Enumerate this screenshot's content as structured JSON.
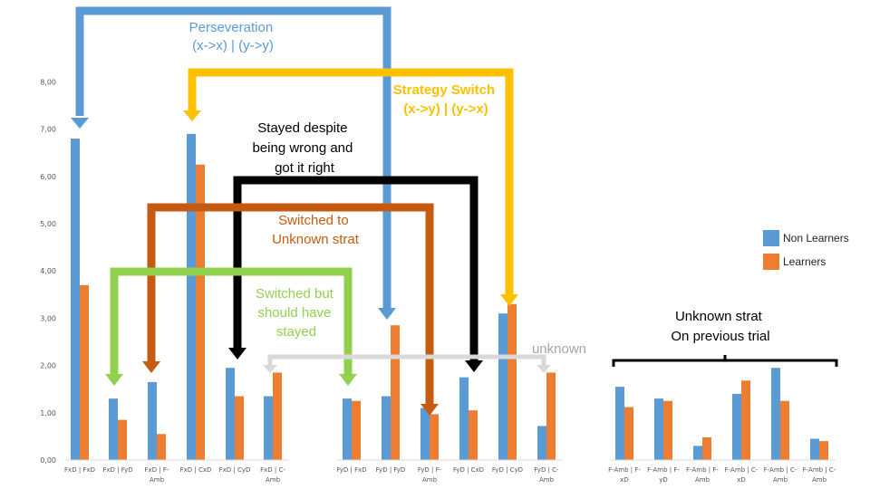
{
  "colors": {
    "non_learners": "#5b9bd5",
    "learners": "#ed7d31",
    "perseveration": "#5b9bd5",
    "strategy_switch": "#ffc000",
    "stayed": "#000000",
    "switched_unknown": "#c55a11",
    "switched_should_stay": "#92d050",
    "unknown_link": "#d9d9d9",
    "annotation_text_blue": "#5b9bd5",
    "annotation_text_gold": "#ffc000",
    "annotation_text_brown": "#c55a11",
    "annotation_text_green": "#92d050",
    "annotation_text_grey": "#a6a6a6"
  },
  "annotations": {
    "perseveration": [
      "Perseveration",
      "(x->x) | (y->y)"
    ],
    "strategy_switch": [
      "Strategy Switch",
      "(x->y) | (y->x)"
    ],
    "stayed": [
      "Stayed despite",
      "being wrong and",
      "got it right"
    ],
    "switched_unknown": [
      "Switched to",
      "Unknown strat"
    ],
    "switched_should_stay": [
      "Switched but",
      "should have",
      "stayed"
    ],
    "unknown": "unknown",
    "unknown_prev": [
      "Unknown strat",
      "On previous trial"
    ]
  },
  "chart_data": {
    "type": "bar",
    "title": "",
    "xlabel": "",
    "ylabel": "",
    "ylim": [
      0,
      9
    ],
    "yticks": [
      "0,00",
      "1,00",
      "2,00",
      "3,00",
      "4,00",
      "5,00",
      "6,00",
      "7,00",
      "8,00"
    ],
    "grid": false,
    "legend_position": "right",
    "categories": [
      [
        "FxD | FxD"
      ],
      [
        "FxD | FyD"
      ],
      [
        "FxD | F-",
        "Amb"
      ],
      [
        "FxD | CxD"
      ],
      [
        "FxD | CyD"
      ],
      [
        "FxD | C-",
        "Amb"
      ],
      [
        "FyD | FxD"
      ],
      [
        "FyD | FyD"
      ],
      [
        "FyD | F-",
        "Amb"
      ],
      [
        "FyD | CxD"
      ],
      [
        "FyD | CyD"
      ],
      [
        "FyD | C-",
        "Amb"
      ],
      [
        "F-Amb | F-",
        "xD"
      ],
      [
        "F-Amb | F-",
        "yD"
      ],
      [
        "F-Amb | F-",
        "Amb"
      ],
      [
        "F-Amb | C-",
        "xD"
      ],
      [
        "F-Amb | C-",
        "Amb"
      ],
      [
        "F-Amb | C-",
        "Amb"
      ]
    ],
    "series": [
      {
        "name": "Non Learners",
        "values": [
          6.8,
          1.3,
          1.65,
          6.9,
          1.95,
          1.35,
          1.3,
          1.35,
          1.1,
          1.75,
          3.1,
          0.72,
          1.55,
          1.3,
          0.3,
          1.4,
          1.95,
          0.45
        ]
      },
      {
        "name": "Learners",
        "values": [
          3.7,
          0.85,
          0.55,
          6.25,
          1.35,
          1.85,
          1.25,
          2.85,
          0.97,
          1.05,
          3.3,
          1.85,
          1.12,
          1.25,
          0.48,
          1.68,
          1.25,
          0.4
        ]
      }
    ]
  }
}
